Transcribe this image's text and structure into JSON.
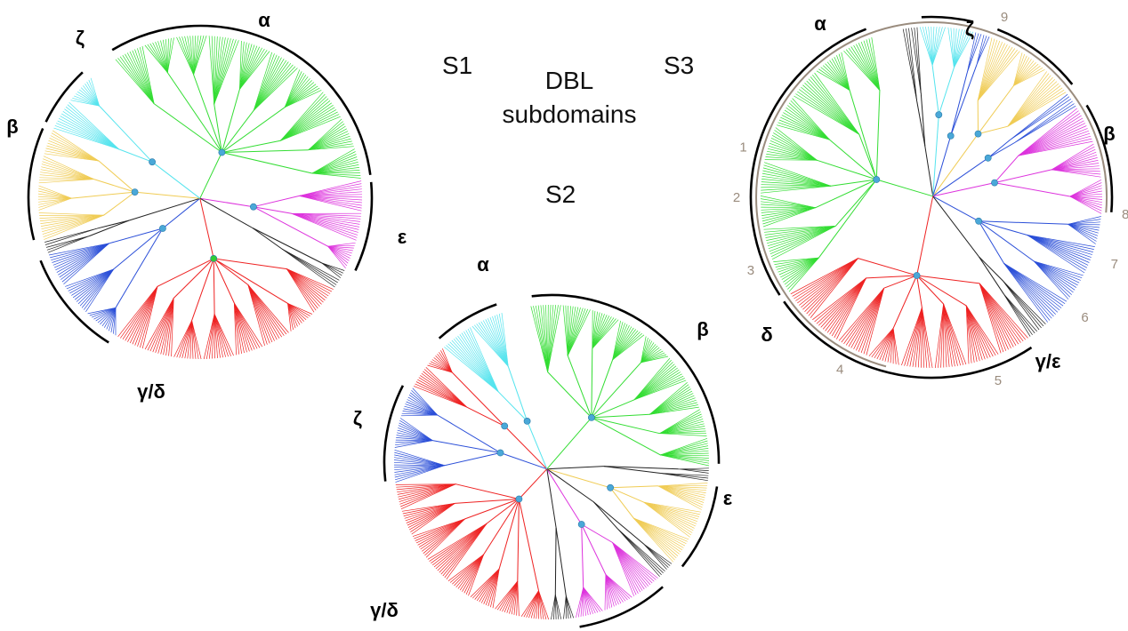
{
  "figure_title": [
    "DBL",
    "subdomains"
  ],
  "colors": {
    "alpha": "#33dd33",
    "beta": "#f0cc55",
    "zeta": "#55e4ee",
    "epsilon": "#dd33dd",
    "gamma_delta": "#2b4fd8",
    "delta": "#ee2222",
    "other": "#222222",
    "node": "#4aa8d8",
    "node_green": "#33cc33",
    "tag": "#9a8c7e"
  },
  "trees": [
    {
      "id": "S1",
      "label": "S1",
      "clades": [
        {
          "key": "alpha",
          "label": "α",
          "color": "#33dd33",
          "leaves": 120
        },
        {
          "key": "epsilon",
          "label": "ε",
          "color": "#dd33dd",
          "leaves": 34
        },
        {
          "key": "other_e",
          "label": "",
          "color": "#222222",
          "leaves": 8
        },
        {
          "key": "delta",
          "label": "",
          "color": "#ee2222",
          "leaves": 90
        },
        {
          "key": "gamma",
          "label": "γ/δ",
          "color": "#2b4fd8",
          "leaves": 40
        },
        {
          "key": "other_b",
          "label": "",
          "color": "#222222",
          "leaves": 5
        },
        {
          "key": "beta",
          "label": "β",
          "color": "#f0cc55",
          "leaves": 42
        },
        {
          "key": "zeta",
          "label": "ζ",
          "color": "#55e4ee",
          "leaves": 24
        }
      ]
    },
    {
      "id": "S2",
      "label": "S2",
      "clades": [
        {
          "key": "alpha",
          "label": "α",
          "color": "#33dd33",
          "leaves": 110
        },
        {
          "key": "other_a",
          "label": "",
          "color": "#222222",
          "leaves": 6
        },
        {
          "key": "beta",
          "label": "β",
          "color": "#f0cc55",
          "leaves": 36
        },
        {
          "key": "other_b",
          "label": "",
          "color": "#222222",
          "leaves": 8
        },
        {
          "key": "epsilon",
          "label": "ε",
          "color": "#dd33dd",
          "leaves": 38
        },
        {
          "key": "other_c",
          "label": "",
          "color": "#222222",
          "leaves": 10
        },
        {
          "key": "delta",
          "label": "",
          "color": "#ee2222",
          "leaves": 90
        },
        {
          "key": "gamma",
          "label": "γ/δ",
          "color": "#2b4fd8",
          "leaves": 40
        },
        {
          "key": "delta2",
          "label": "",
          "color": "#ee2222",
          "leaves": 20
        },
        {
          "key": "zeta",
          "label": "ζ",
          "color": "#55e4ee",
          "leaves": 28
        }
      ]
    },
    {
      "id": "S3",
      "label": "S3",
      "clades": [
        {
          "key": "other_a",
          "label": "",
          "color": "#222222",
          "leaves": 6
        },
        {
          "key": "zeta",
          "label": "ζ",
          "color": "#55e4ee",
          "leaves": 20
        },
        {
          "key": "gamma_z",
          "label": "",
          "color": "#2b4fd8",
          "leaves": 6
        },
        {
          "key": "beta",
          "label": "β",
          "color": "#f0cc55",
          "leaves": 34
        },
        {
          "key": "gamma_b",
          "label": "",
          "color": "#2b4fd8",
          "leaves": 6
        },
        {
          "key": "epsilon",
          "label": "γ/ε",
          "color": "#dd33dd",
          "leaves": 40
        },
        {
          "key": "gamma",
          "label": "",
          "color": "#2b4fd8",
          "leaves": 44
        },
        {
          "key": "other_g",
          "label": "",
          "color": "#222222",
          "leaves": 8
        },
        {
          "key": "delta",
          "label": "δ",
          "color": "#ee2222",
          "leaves": 96
        },
        {
          "key": "alpha",
          "label": "α",
          "color": "#33dd33",
          "leaves": 110
        }
      ],
      "numbered_tags": [
        "1",
        "2",
        "3",
        "4",
        "5",
        "6",
        "7",
        "8",
        "9"
      ]
    }
  ]
}
